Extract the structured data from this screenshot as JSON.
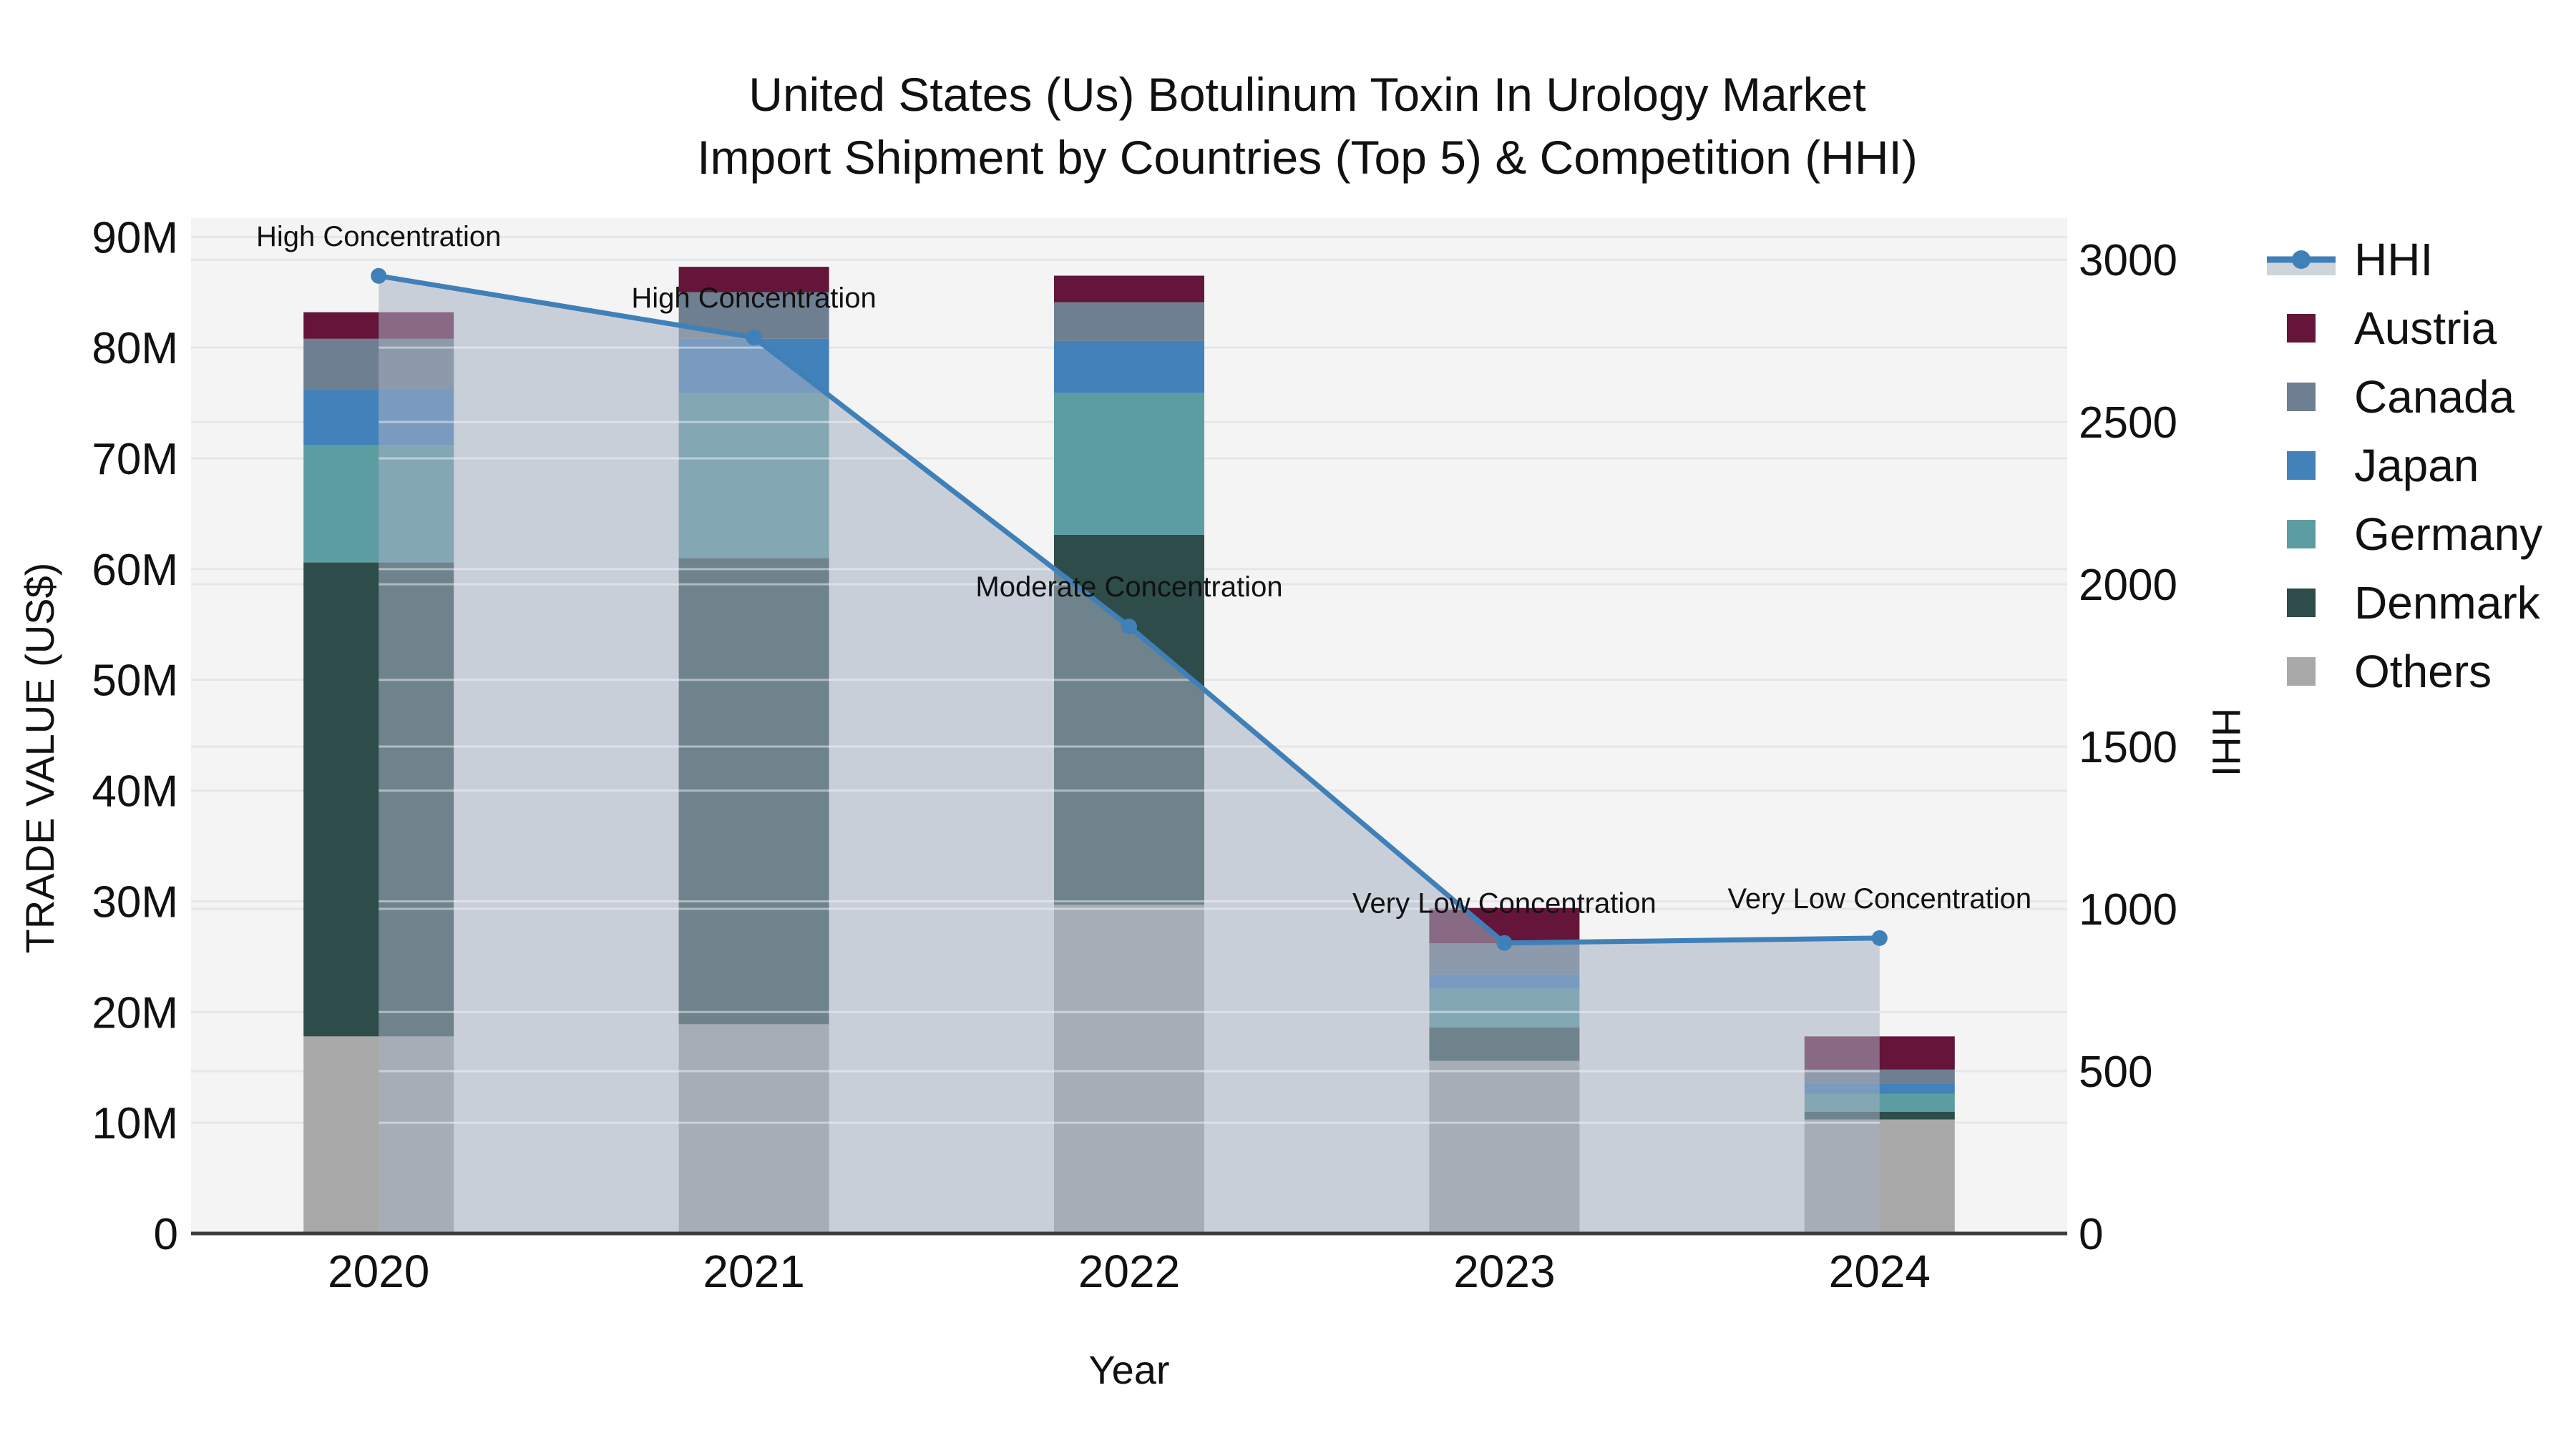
{
  "chart_data": {
    "type": "bar",
    "subtype": "stacked-bars-with-line-area-overlay",
    "title_line1": "United States (Us) Botulinum Toxin In Urology Market",
    "title_line2": "Import Shipment by Countries (Top 5) & Competition (HHI)",
    "xlabel": "Year",
    "ylabel_left": "TRADE VALUE (US$)",
    "ylabel_right": "HHI",
    "categories": [
      "2020",
      "2021",
      "2022",
      "2023",
      "2024"
    ],
    "values_unit": "millions US$",
    "series": [
      {
        "name": "Others",
        "color": "#A9A9A9",
        "values": [
          17.8,
          18.9,
          29.7,
          15.6,
          10.3
        ]
      },
      {
        "name": "Denmark",
        "color": "#2D4C4A",
        "values": [
          42.8,
          42.1,
          33.4,
          3.0,
          0.7
        ]
      },
      {
        "name": "Germany",
        "color": "#5C9DA1",
        "values": [
          10.6,
          14.9,
          12.8,
          3.5,
          1.6
        ]
      },
      {
        "name": "Japan",
        "color": "#4381BA",
        "values": [
          5.0,
          4.9,
          4.7,
          1.3,
          0.9
        ]
      },
      {
        "name": "Canada",
        "color": "#6D7F91",
        "values": [
          4.6,
          4.2,
          3.5,
          2.8,
          1.3
        ]
      },
      {
        "name": "Austria",
        "color": "#641539",
        "values": [
          2.4,
          2.3,
          2.4,
          3.2,
          3.0
        ]
      }
    ],
    "hhi_series": {
      "name": "HHI",
      "values": [
        2950,
        2760,
        1870,
        895,
        910
      ],
      "line_color": "#4080B8",
      "area_fill_color": "rgba(165,176,195,0.55)",
      "legend_band_color": "#CFD3DA"
    },
    "annotations": [
      {
        "category": "2020",
        "text": "High Concentration"
      },
      {
        "category": "2021",
        "text": "High Concentration"
      },
      {
        "category": "2022",
        "text": "Moderate Concentration"
      },
      {
        "category": "2023",
        "text": "Very Low Concentration"
      },
      {
        "category": "2024",
        "text": "Very Low Concentration"
      }
    ],
    "y_left": {
      "tick_values": [
        0,
        10,
        20,
        30,
        40,
        50,
        60,
        70,
        80,
        90
      ],
      "tick_labels": [
        "0",
        "10M",
        "20M",
        "30M",
        "40M",
        "50M",
        "60M",
        "70M",
        "80M",
        "90M"
      ],
      "max": 91.7
    },
    "y_right": {
      "tick_values": [
        0,
        500,
        1000,
        1500,
        2000,
        2500,
        3000
      ],
      "tick_labels": [
        "0",
        "500",
        "1000",
        "1500",
        "2000",
        "2500",
        "3000"
      ],
      "max": 3128
    },
    "legend_entries": [
      "HHI",
      "Austria",
      "Canada",
      "Japan",
      "Germany",
      "Denmark",
      "Others"
    ],
    "style": {
      "plot_bg": "#F4F4F4",
      "grid_color": "#E4E6EA",
      "grid_over_fill_color": "rgba(255,255,255,0.45)",
      "axis_line_color": "#3C3C3C",
      "text_color": "#111111"
    },
    "legend_position": "right",
    "grid": true
  }
}
